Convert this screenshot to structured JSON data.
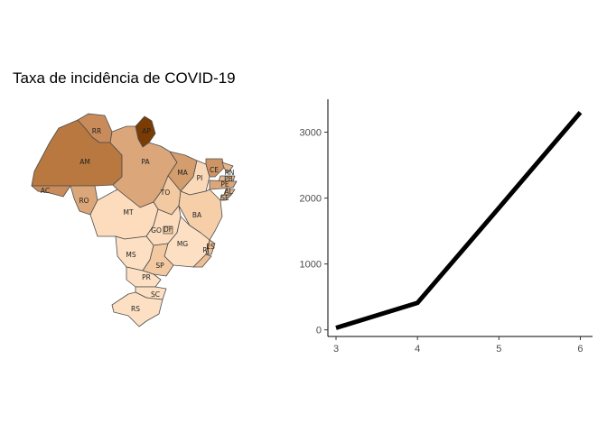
{
  "chart_data": [
    {
      "type": "choropleth-map",
      "title": "Taxa de incidência de COVID-19",
      "regions": [
        {
          "label": "RR",
          "fill": "#c98b5a"
        },
        {
          "label": "AP",
          "fill": "#7a3b05"
        },
        {
          "label": "AM",
          "fill": "#b87840"
        },
        {
          "label": "PA",
          "fill": "#dba679"
        },
        {
          "label": "AC",
          "fill": "#c98b5a"
        },
        {
          "label": "RO",
          "fill": "#dba679"
        },
        {
          "label": "MA",
          "fill": "#d49d6e"
        },
        {
          "label": "PI",
          "fill": "#fad9b8"
        },
        {
          "label": "CE",
          "fill": "#cf9464"
        },
        {
          "label": "RN",
          "fill": "#e3b68d"
        },
        {
          "label": "PB",
          "fill": "#e3b68d"
        },
        {
          "label": "PE",
          "fill": "#dba679"
        },
        {
          "label": "AL",
          "fill": "#e3b68d"
        },
        {
          "label": "SE",
          "fill": "#e3b68d"
        },
        {
          "label": "TO",
          "fill": "#f3c9a1"
        },
        {
          "label": "BA",
          "fill": "#f6cfa9"
        },
        {
          "label": "MT",
          "fill": "#fcdcbd"
        },
        {
          "label": "GO",
          "fill": "#fcdcbd"
        },
        {
          "label": "DF",
          "fill": "#f3c9a1"
        },
        {
          "label": "MG",
          "fill": "#fde0c3"
        },
        {
          "label": "ES",
          "fill": "#eebf94"
        },
        {
          "label": "RJ",
          "fill": "#eebf94"
        },
        {
          "label": "MS",
          "fill": "#fde0c3"
        },
        {
          "label": "SP",
          "fill": "#f3c9a1"
        },
        {
          "label": "PR",
          "fill": "#fde0c3"
        },
        {
          "label": "SC",
          "fill": "#fde0c3"
        },
        {
          "label": "RS",
          "fill": "#fde0c3"
        }
      ]
    },
    {
      "type": "line",
      "x": [
        3,
        4,
        5,
        6
      ],
      "series": [
        {
          "values": [
            30,
            410,
            1850,
            3300
          ],
          "color": "#000000"
        }
      ],
      "xlim": [
        2.9,
        6.15
      ],
      "ylim": [
        -100,
        3500
      ],
      "xticks": [
        3,
        4,
        5,
        6
      ],
      "yticks": [
        0,
        1000,
        2000,
        3000
      ],
      "grid": false,
      "legend": "none"
    }
  ]
}
